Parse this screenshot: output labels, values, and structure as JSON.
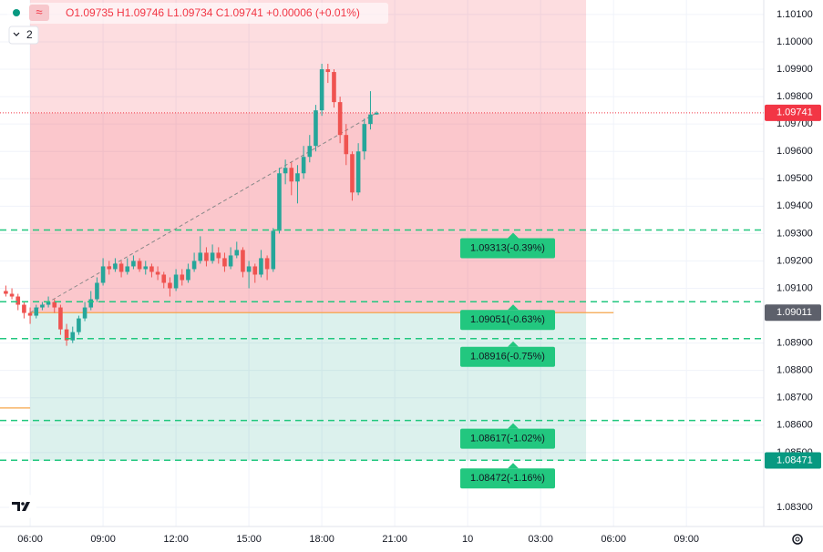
{
  "chart_data": {
    "type": "candlestick",
    "header": {
      "ohlc": "O1.09735 H1.09746 L1.09734 C1.09741 +0.00006 (+0.01%)",
      "indicator_count": "2"
    },
    "up_color": "#26a69a",
    "down_color": "#ef5350",
    "x": [
      5,
      5.25,
      5.5,
      5.75,
      6,
      6.25,
      6.5,
      6.75,
      7,
      7.25,
      7.5,
      7.75,
      8,
      8.25,
      8.5,
      8.75,
      9,
      9.25,
      9.5,
      9.75,
      10,
      10.25,
      10.5,
      10.75,
      11,
      11.25,
      11.5,
      11.75,
      12,
      12.25,
      12.5,
      12.75,
      13,
      13.25,
      13.5,
      13.75,
      14,
      14.25,
      14.5,
      14.75,
      15,
      15.25,
      15.5,
      15.75,
      16,
      16.25,
      16.5,
      16.75,
      17,
      17.25,
      17.5,
      17.75,
      18,
      18.25,
      18.5,
      18.75,
      19,
      19.25,
      19.5,
      19.75,
      20,
      20.25
    ],
    "open": [
      1.0909,
      1.0908,
      1.0907,
      1.0904,
      1.0901,
      1.09,
      1.0903,
      1.0904,
      1.0905,
      1.0903,
      1.0895,
      1.0891,
      1.0894,
      1.0899,
      1.0903,
      1.0906,
      1.0912,
      1.0918,
      1.0917,
      1.0919,
      1.0916,
      1.0918,
      1.092,
      1.0917,
      1.0918,
      1.0916,
      1.0915,
      1.0912,
      1.091,
      1.0915,
      1.0913,
      1.0917,
      1.092,
      1.0923,
      1.092,
      1.0923,
      1.0921,
      1.0918,
      1.0922,
      1.0924,
      1.0916,
      1.0918,
      1.0915,
      1.0921,
      1.0917,
      1.0931,
      1.0952,
      1.0954,
      1.0949,
      1.0952,
      1.0958,
      1.0962,
      1.0975,
      1.099,
      1.0989,
      1.0978,
      1.0966,
      1.0959,
      1.0945,
      1.096,
      1.097,
      1.09735
    ],
    "high": [
      1.0911,
      1.091,
      1.0908,
      1.0905,
      1.0903,
      1.0904,
      1.0905,
      1.0907,
      1.0906,
      1.0904,
      1.0897,
      1.0896,
      1.09,
      1.0905,
      1.0909,
      1.0914,
      1.0921,
      1.092,
      1.0921,
      1.092,
      1.0921,
      1.0922,
      1.0921,
      1.092,
      1.0919,
      1.0918,
      1.0916,
      1.0914,
      1.0917,
      1.0917,
      1.0919,
      1.0923,
      1.0929,
      1.0925,
      1.0926,
      1.0925,
      1.0923,
      1.0925,
      1.0927,
      1.0925,
      1.092,
      1.0919,
      1.0924,
      1.0922,
      1.0932,
      1.0954,
      1.0957,
      1.0956,
      1.0955,
      1.0962,
      1.0966,
      1.0977,
      1.0992,
      1.0992,
      1.099,
      1.098,
      1.097,
      1.096,
      1.0963,
      1.0972,
      1.0982,
      1.09746
    ],
    "low": [
      1.0907,
      1.0906,
      1.0902,
      1.0899,
      1.0897,
      1.0899,
      1.0902,
      1.0903,
      1.0901,
      1.0893,
      1.0889,
      1.089,
      1.0893,
      1.0898,
      1.0902,
      1.0905,
      1.0911,
      1.0915,
      1.0916,
      1.0914,
      1.0915,
      1.0917,
      1.0916,
      1.0915,
      1.0914,
      1.0913,
      1.091,
      1.0907,
      1.0909,
      1.0911,
      1.0912,
      1.0916,
      1.0919,
      1.0918,
      1.0919,
      1.0919,
      1.0916,
      1.0917,
      1.0921,
      1.0914,
      1.091,
      1.0912,
      1.0914,
      1.0913,
      1.0916,
      1.093,
      1.0948,
      1.0944,
      1.0941,
      1.095,
      1.0956,
      1.096,
      1.0973,
      1.0985,
      1.0976,
      1.0963,
      1.0955,
      1.0942,
      1.0944,
      1.0957,
      1.0968,
      1.09734
    ],
    "close": [
      1.0908,
      1.0907,
      1.0904,
      1.0901,
      1.09,
      1.0903,
      1.0904,
      1.0905,
      1.0903,
      1.0895,
      1.0891,
      1.0894,
      1.0899,
      1.0903,
      1.0906,
      1.0912,
      1.0918,
      1.0917,
      1.0919,
      1.0916,
      1.0918,
      1.092,
      1.0917,
      1.0918,
      1.0916,
      1.0915,
      1.0912,
      1.091,
      1.0915,
      1.0913,
      1.0917,
      1.092,
      1.0923,
      1.092,
      1.0923,
      1.0921,
      1.0918,
      1.0922,
      1.0924,
      1.0916,
      1.0918,
      1.0915,
      1.0921,
      1.0917,
      1.0931,
      1.0952,
      1.0954,
      1.0949,
      1.0952,
      1.0958,
      1.0962,
      1.0975,
      1.099,
      1.0989,
      1.0978,
      1.0966,
      1.0959,
      1.0945,
      1.096,
      1.097,
      1.09735,
      1.09741
    ],
    "xlim": [
      4.76,
      36.18
    ],
    "xticks": [
      {
        "value": 6,
        "label": "06:00"
      },
      {
        "value": 9,
        "label": "09:00"
      },
      {
        "value": 12,
        "label": "12:00"
      },
      {
        "value": 15,
        "label": "15:00"
      },
      {
        "value": 18,
        "label": "18:00"
      },
      {
        "value": 21,
        "label": "21:00"
      },
      {
        "value": 24,
        "label": "10"
      },
      {
        "value": 27,
        "label": "03:00"
      },
      {
        "value": 30,
        "label": "06:00"
      },
      {
        "value": 33,
        "label": "09:00"
      }
    ],
    "ylim": [
      1.0823,
      1.10153
    ],
    "yticks": [
      {
        "value": 1.101,
        "label": "1.10100"
      },
      {
        "value": 1.1,
        "label": "1.10000"
      },
      {
        "value": 1.099,
        "label": "1.09900"
      },
      {
        "value": 1.098,
        "label": "1.09800"
      },
      {
        "value": 1.097,
        "label": "1.09700"
      },
      {
        "value": 1.096,
        "label": "1.09600"
      },
      {
        "value": 1.095,
        "label": "1.09500"
      },
      {
        "value": 1.094,
        "label": "1.09400"
      },
      {
        "value": 1.093,
        "label": "1.09300"
      },
      {
        "value": 1.092,
        "label": "1.09200"
      },
      {
        "value": 1.091,
        "label": "1.09100"
      },
      {
        "value": 1.089,
        "label": "1.08900"
      },
      {
        "value": 1.088,
        "label": "1.08800"
      },
      {
        "value": 1.087,
        "label": "1.08700"
      },
      {
        "value": 1.086,
        "label": "1.08600"
      },
      {
        "value": 1.085,
        "label": "1.08500"
      },
      {
        "value": 1.083,
        "label": "1.08300"
      }
    ],
    "grid": true,
    "position": {
      "entry": 1.09011,
      "target": 1.08471,
      "start": 6,
      "end": 28.87,
      "current": 1.09741,
      "loss_color": "#f23645",
      "profit_color": "#089981"
    },
    "levels": [
      {
        "value": 1.09313,
        "label": "1.09313(-0.39%)"
      },
      {
        "value": 1.09051,
        "label": "1.09051(-0.63%)"
      },
      {
        "value": 1.08916,
        "label": "1.08916(-0.75%)"
      },
      {
        "value": 1.08617,
        "label": "1.08617(-1.02%)"
      },
      {
        "value": 1.08472,
        "label": "1.08472(-1.16%)"
      }
    ],
    "level_color": "#22c77f",
    "entry_line": {
      "value": 1.09011,
      "start": 6,
      "end": 30,
      "color": "#f5a54a"
    },
    "old_line": {
      "value": 1.08663,
      "end": 6,
      "color": "#f5a54a"
    }
  }
}
